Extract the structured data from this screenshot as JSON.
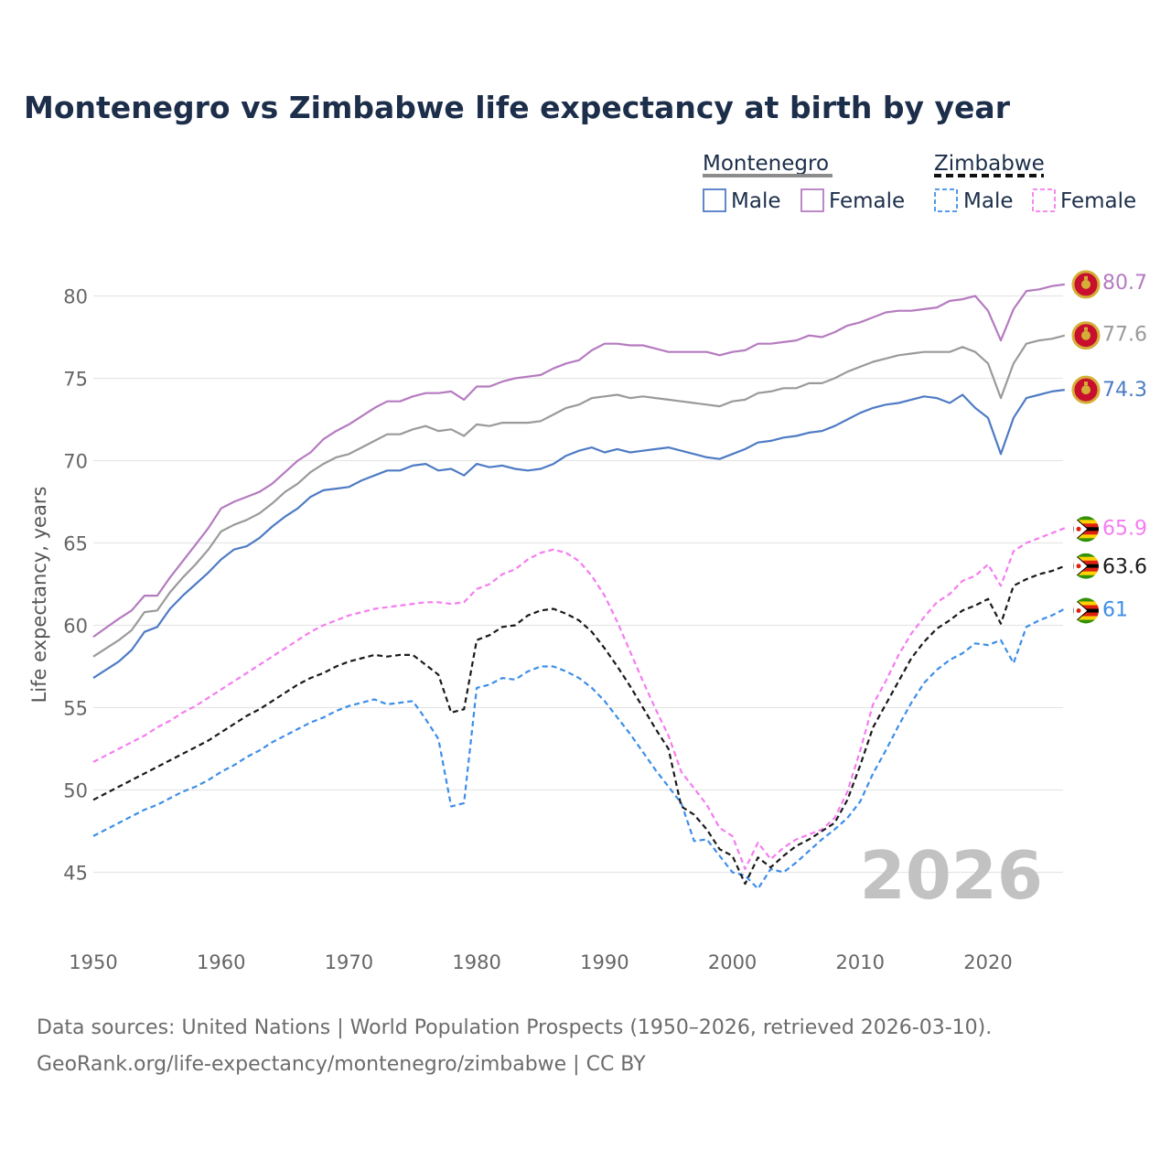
{
  "chart_data": {
    "type": "line",
    "title": "Montenegro vs Zimbabwe life expectancy at birth by year",
    "ylabel": "Life expectancy, years",
    "xlabel": "",
    "xlim": [
      1950,
      2026
    ],
    "ylim": [
      43,
      82
    ],
    "x_ticks": [
      1950,
      1960,
      1970,
      1980,
      1990,
      2000,
      2010,
      2020
    ],
    "y_ticks": [
      45,
      50,
      55,
      60,
      65,
      70,
      75,
      80
    ],
    "watermark_year": "2026",
    "legend": {
      "groups": [
        {
          "name": "Montenegro",
          "style": "solid",
          "color": "#8c8c8c",
          "items": [
            "Male",
            "Female"
          ]
        },
        {
          "name": "Zimbabwe",
          "style": "dashed",
          "color": "#111111",
          "items": [
            "Male",
            "Female"
          ]
        }
      ]
    },
    "anchors_x": [
      1950,
      1952,
      1953,
      1954,
      1955,
      1956,
      1957,
      1958,
      1959,
      1960,
      1961,
      1962,
      1963,
      1964,
      1965,
      1966,
      1967,
      1968,
      1969,
      1970,
      1971,
      1972,
      1973,
      1974,
      1975,
      1976,
      1977,
      1978,
      1979,
      1980,
      1981,
      1982,
      1983,
      1984,
      1985,
      1986,
      1987,
      1988,
      1989,
      1990,
      1991,
      1992,
      1993,
      1994,
      1995,
      1996,
      1997,
      1998,
      1999,
      2000,
      2001,
      2002,
      2003,
      2004,
      2005,
      2006,
      2007,
      2008,
      2009,
      2010,
      2011,
      2012,
      2013,
      2014,
      2015,
      2016,
      2017,
      2018,
      2019,
      2020,
      2021,
      2022,
      2023,
      2024,
      2025,
      2026
    ],
    "series": [
      {
        "name": "Montenegro Male",
        "country": "Montenegro",
        "sex": "Male",
        "color": "#4e7bc4",
        "dash": false,
        "end_label": "74.3",
        "x": [
          1950,
          1952,
          1953,
          1954,
          1955,
          1956,
          1957,
          1958,
          1959,
          1960,
          1961,
          1962,
          1963,
          1964,
          1965,
          1966,
          1967,
          1968,
          1969,
          1970,
          1971,
          1972,
          1973,
          1974,
          1975,
          1976,
          1977,
          1978,
          1979,
          1980,
          1981,
          1982,
          1983,
          1984,
          1985,
          1986,
          1987,
          1988,
          1989,
          1990,
          1991,
          1992,
          1993,
          1994,
          1995,
          1996,
          1997,
          1998,
          1999,
          2000,
          2001,
          2002,
          2003,
          2004,
          2005,
          2006,
          2007,
          2008,
          2009,
          2010,
          2011,
          2012,
          2013,
          2014,
          2015,
          2016,
          2017,
          2018,
          2019,
          2020,
          2021,
          2022,
          2023,
          2024,
          2025,
          2026
        ],
        "values": [
          56.8,
          57.8,
          58.5,
          59.6,
          59.9,
          61.0,
          61.8,
          62.5,
          63.2,
          64.0,
          64.6,
          64.8,
          65.3,
          66.0,
          66.6,
          67.1,
          67.8,
          68.2,
          68.3,
          68.4,
          68.8,
          69.1,
          69.4,
          69.4,
          69.7,
          69.8,
          69.4,
          69.5,
          69.1,
          69.8,
          69.6,
          69.7,
          69.5,
          69.4,
          69.5,
          69.8,
          70.3,
          70.6,
          70.8,
          70.5,
          70.7,
          70.5,
          70.6,
          70.7,
          70.8,
          70.6,
          70.4,
          70.2,
          70.1,
          70.4,
          70.7,
          71.1,
          71.2,
          71.4,
          71.5,
          71.7,
          71.8,
          72.1,
          72.5,
          72.9,
          73.2,
          73.4,
          73.5,
          73.7,
          73.9,
          73.8,
          73.5,
          74.0,
          73.2,
          72.6,
          70.4,
          72.6,
          73.8,
          74.0,
          74.2,
          74.3
        ]
      },
      {
        "name": "Montenegro Female",
        "country": "Montenegro",
        "sex": "Female",
        "color": "#b57bc0",
        "dash": false,
        "end_label": "80.7",
        "x": [
          1950,
          1952,
          1953,
          1954,
          1955,
          1956,
          1957,
          1958,
          1959,
          1960,
          1961,
          1962,
          1963,
          1964,
          1965,
          1966,
          1967,
          1968,
          1969,
          1970,
          1971,
          1972,
          1973,
          1974,
          1975,
          1976,
          1977,
          1978,
          1979,
          1980,
          1981,
          1982,
          1983,
          1984,
          1985,
          1986,
          1987,
          1988,
          1989,
          1990,
          1991,
          1992,
          1993,
          1994,
          1995,
          1996,
          1997,
          1998,
          1999,
          2000,
          2001,
          2002,
          2003,
          2004,
          2005,
          2006,
          2007,
          2008,
          2009,
          2010,
          2011,
          2012,
          2013,
          2014,
          2015,
          2016,
          2017,
          2018,
          2019,
          2020,
          2021,
          2022,
          2023,
          2024,
          2025,
          2026
        ],
        "values": [
          59.3,
          60.4,
          60.9,
          61.8,
          61.8,
          62.9,
          63.9,
          64.9,
          65.9,
          67.1,
          67.5,
          67.8,
          68.1,
          68.6,
          69.3,
          70.0,
          70.5,
          71.3,
          71.8,
          72.2,
          72.7,
          73.2,
          73.6,
          73.6,
          73.9,
          74.1,
          74.1,
          74.2,
          73.7,
          74.5,
          74.5,
          74.8,
          75.0,
          75.1,
          75.2,
          75.6,
          75.9,
          76.1,
          76.7,
          77.1,
          77.1,
          77.0,
          77.0,
          76.8,
          76.6,
          76.6,
          76.6,
          76.6,
          76.4,
          76.6,
          76.7,
          77.1,
          77.1,
          77.2,
          77.3,
          77.6,
          77.5,
          77.8,
          78.2,
          78.4,
          78.7,
          79.0,
          79.1,
          79.1,
          79.2,
          79.3,
          79.7,
          79.8,
          80.0,
          79.1,
          77.3,
          79.2,
          80.3,
          80.4,
          80.6,
          80.7
        ]
      },
      {
        "name": "Montenegro Total",
        "country": "Montenegro",
        "sex": "Total",
        "color": "#9a9a9a",
        "dash": false,
        "end_label": "77.6",
        "x": [
          1950,
          1952,
          1953,
          1954,
          1955,
          1956,
          1957,
          1958,
          1959,
          1960,
          1961,
          1962,
          1963,
          1964,
          1965,
          1966,
          1967,
          1968,
          1969,
          1970,
          1971,
          1972,
          1973,
          1974,
          1975,
          1976,
          1977,
          1978,
          1979,
          1980,
          1981,
          1982,
          1983,
          1984,
          1985,
          1986,
          1987,
          1988,
          1989,
          1990,
          1991,
          1992,
          1993,
          1994,
          1995,
          1996,
          1997,
          1998,
          1999,
          2000,
          2001,
          2002,
          2003,
          2004,
          2005,
          2006,
          2007,
          2008,
          2009,
          2010,
          2011,
          2012,
          2013,
          2014,
          2015,
          2016,
          2017,
          2018,
          2019,
          2020,
          2021,
          2022,
          2023,
          2024,
          2025,
          2026
        ],
        "values": [
          58.1,
          59.1,
          59.7,
          60.8,
          60.9,
          62.0,
          62.9,
          63.7,
          64.6,
          65.7,
          66.1,
          66.4,
          66.8,
          67.4,
          68.1,
          68.6,
          69.3,
          69.8,
          70.2,
          70.4,
          70.8,
          71.2,
          71.6,
          71.6,
          71.9,
          72.1,
          71.8,
          71.9,
          71.5,
          72.2,
          72.1,
          72.3,
          72.3,
          72.3,
          72.4,
          72.8,
          73.2,
          73.4,
          73.8,
          73.9,
          74.0,
          73.8,
          73.9,
          73.8,
          73.7,
          73.6,
          73.5,
          73.4,
          73.3,
          73.6,
          73.7,
          74.1,
          74.2,
          74.4,
          74.4,
          74.7,
          74.7,
          75.0,
          75.4,
          75.7,
          76.0,
          76.2,
          76.4,
          76.5,
          76.6,
          76.6,
          76.6,
          76.9,
          76.6,
          75.9,
          73.8,
          75.9,
          77.1,
          77.3,
          77.4,
          77.6
        ]
      },
      {
        "name": "Zimbabwe Male",
        "country": "Zimbabwe",
        "sex": "Male",
        "color": "#3d8ee8",
        "dash": true,
        "end_label": "61",
        "x": [
          1950,
          1952,
          1953,
          1954,
          1955,
          1956,
          1957,
          1958,
          1959,
          1960,
          1961,
          1962,
          1963,
          1964,
          1965,
          1966,
          1967,
          1968,
          1969,
          1970,
          1971,
          1972,
          1973,
          1974,
          1975,
          1976,
          1977,
          1978,
          1979,
          1980,
          1981,
          1982,
          1983,
          1984,
          1985,
          1986,
          1987,
          1988,
          1989,
          1990,
          1991,
          1992,
          1993,
          1994,
          1995,
          1996,
          1997,
          1998,
          1999,
          2000,
          2001,
          2002,
          2003,
          2004,
          2005,
          2006,
          2007,
          2008,
          2009,
          2010,
          2011,
          2012,
          2013,
          2014,
          2015,
          2016,
          2017,
          2018,
          2019,
          2020,
          2021,
          2022,
          2023,
          2024,
          2025,
          2026
        ],
        "values": [
          47.2,
          48.0,
          48.4,
          48.8,
          49.1,
          49.5,
          49.9,
          50.2,
          50.6,
          51.1,
          51.5,
          52.0,
          52.4,
          52.9,
          53.3,
          53.7,
          54.1,
          54.4,
          54.8,
          55.1,
          55.3,
          55.5,
          55.2,
          55.3,
          55.4,
          54.3,
          53.1,
          49.0,
          49.2,
          56.2,
          56.4,
          56.8,
          56.7,
          57.2,
          57.5,
          57.5,
          57.2,
          56.8,
          56.2,
          55.4,
          54.4,
          53.4,
          52.3,
          51.2,
          50.2,
          49.2,
          46.9,
          47.0,
          46.0,
          45.0,
          44.8,
          44.0,
          45.2,
          45.0,
          45.6,
          46.3,
          47.0,
          47.6,
          48.3,
          49.3,
          51.0,
          52.4,
          53.9,
          55.3,
          56.5,
          57.3,
          57.9,
          58.3,
          58.9,
          58.8,
          59.1,
          57.7,
          59.9,
          60.3,
          60.6,
          61.0
        ]
      },
      {
        "name": "Zimbabwe Female",
        "country": "Zimbabwe",
        "sex": "Female",
        "color": "#f57cf0",
        "dash": true,
        "end_label": "65.9",
        "x": [
          1950,
          1952,
          1953,
          1954,
          1955,
          1956,
          1957,
          1958,
          1959,
          1960,
          1961,
          1962,
          1963,
          1964,
          1965,
          1966,
          1967,
          1968,
          1969,
          1970,
          1971,
          1972,
          1973,
          1974,
          1975,
          1976,
          1977,
          1978,
          1979,
          1980,
          1981,
          1982,
          1983,
          1984,
          1985,
          1986,
          1987,
          1988,
          1989,
          1990,
          1991,
          1992,
          1993,
          1994,
          1995,
          1996,
          1997,
          1998,
          1999,
          2000,
          2001,
          2002,
          2003,
          2004,
          2005,
          2006,
          2007,
          2008,
          2009,
          2010,
          2011,
          2012,
          2013,
          2014,
          2015,
          2016,
          2017,
          2018,
          2019,
          2020,
          2021,
          2022,
          2023,
          2024,
          2025,
          2026
        ],
        "values": [
          51.7,
          52.5,
          52.9,
          53.3,
          53.8,
          54.2,
          54.7,
          55.1,
          55.6,
          56.1,
          56.6,
          57.1,
          57.6,
          58.1,
          58.6,
          59.1,
          59.6,
          60.0,
          60.3,
          60.6,
          60.8,
          61.0,
          61.1,
          61.2,
          61.3,
          61.4,
          61.4,
          61.3,
          61.4,
          62.2,
          62.5,
          63.1,
          63.4,
          64.0,
          64.4,
          64.6,
          64.4,
          63.9,
          63.0,
          61.8,
          60.2,
          58.4,
          56.6,
          54.9,
          53.3,
          51.1,
          50.1,
          49.1,
          47.7,
          47.2,
          45.2,
          46.8,
          45.8,
          46.5,
          47.0,
          47.3,
          47.6,
          48.3,
          49.9,
          52.4,
          55.2,
          56.6,
          58.2,
          59.5,
          60.5,
          61.4,
          61.9,
          62.7,
          63.0,
          63.7,
          62.4,
          64.5,
          65.0,
          65.3,
          65.6,
          65.9
        ]
      },
      {
        "name": "Zimbabwe Total",
        "country": "Zimbabwe",
        "sex": "Total",
        "color": "#1a1a1a",
        "dash": true,
        "end_label": "63.6",
        "x": [
          1950,
          1952,
          1953,
          1954,
          1955,
          1956,
          1957,
          1958,
          1959,
          1960,
          1961,
          1962,
          1963,
          1964,
          1965,
          1966,
          1967,
          1968,
          1969,
          1970,
          1971,
          1972,
          1973,
          1974,
          1975,
          1976,
          1977,
          1978,
          1979,
          1980,
          1981,
          1982,
          1983,
          1984,
          1985,
          1986,
          1987,
          1988,
          1989,
          1990,
          1991,
          1992,
          1993,
          1994,
          1995,
          1996,
          1997,
          1998,
          1999,
          2000,
          2001,
          2002,
          2003,
          2004,
          2005,
          2006,
          2007,
          2008,
          2009,
          2010,
          2011,
          2012,
          2013,
          2014,
          2015,
          2016,
          2017,
          2018,
          2019,
          2020,
          2021,
          2022,
          2023,
          2024,
          2025,
          2026
        ],
        "values": [
          49.4,
          50.2,
          50.6,
          51.0,
          51.4,
          51.8,
          52.2,
          52.6,
          53.0,
          53.5,
          54.0,
          54.5,
          54.9,
          55.4,
          55.9,
          56.4,
          56.8,
          57.1,
          57.5,
          57.8,
          58.0,
          58.2,
          58.1,
          58.2,
          58.2,
          57.6,
          57.0,
          54.7,
          54.9,
          59.1,
          59.4,
          59.9,
          60.0,
          60.6,
          60.9,
          61.0,
          60.7,
          60.3,
          59.6,
          58.6,
          57.5,
          56.3,
          55.0,
          53.7,
          52.5,
          49.0,
          48.5,
          47.6,
          46.4,
          46.0,
          44.3,
          45.9,
          45.3,
          46.0,
          46.6,
          47.0,
          47.5,
          48.0,
          49.4,
          51.5,
          53.8,
          55.2,
          56.6,
          58.0,
          59.0,
          59.8,
          60.3,
          60.9,
          61.2,
          61.6,
          60.1,
          62.4,
          62.8,
          63.1,
          63.3,
          63.6
        ]
      }
    ]
  },
  "source_line1": "Data sources: United Nations | World Population Prospects (1950–2026, retrieved 2026-03-10).",
  "source_line2": "GeoRank.org/life-expectancy/montenegro/zimbabwe | CC BY"
}
